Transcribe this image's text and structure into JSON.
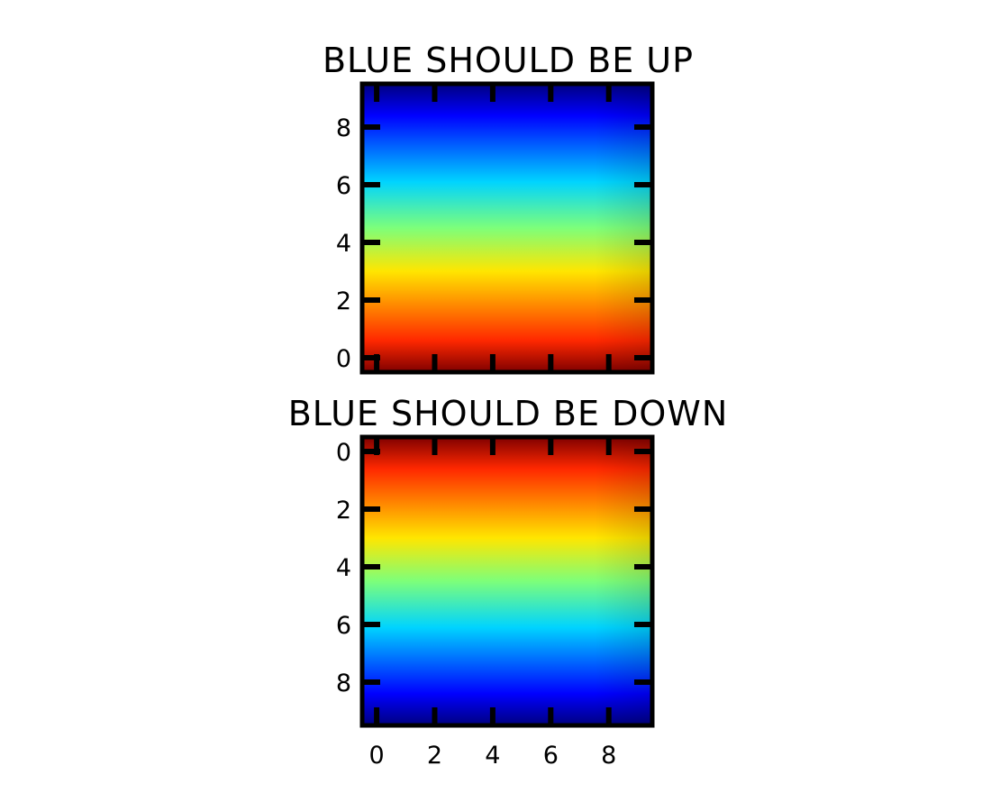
{
  "chart_data": [
    {
      "type": "heatmap",
      "title": "BLUE SHOULD BE UP",
      "colormap": "jet",
      "y_axis_direction": "inverted",
      "grid": false,
      "xlim": [
        -0.5,
        9.5
      ],
      "ylim": [
        9.5,
        -0.5
      ],
      "x_ticks_shown": false,
      "x_ticks": [
        0,
        2,
        4,
        6,
        8
      ],
      "y_ticks": [
        0,
        2,
        4,
        6,
        8
      ],
      "values_by_row": [
        0,
        1,
        2,
        3,
        4,
        5,
        6,
        7,
        8,
        9
      ]
    },
    {
      "type": "heatmap",
      "title": "BLUE SHOULD BE DOWN",
      "colormap": "jet",
      "y_axis_direction": "normal",
      "grid": false,
      "xlim": [
        -0.5,
        9.5
      ],
      "ylim": [
        -0.5,
        9.5
      ],
      "x_ticks_shown": true,
      "x_ticks": [
        0,
        2,
        4,
        6,
        8
      ],
      "y_ticks": [
        0,
        2,
        4,
        6,
        8
      ],
      "values_by_row": [
        0,
        1,
        2,
        3,
        4,
        5,
        6,
        7,
        8,
        9
      ]
    }
  ]
}
